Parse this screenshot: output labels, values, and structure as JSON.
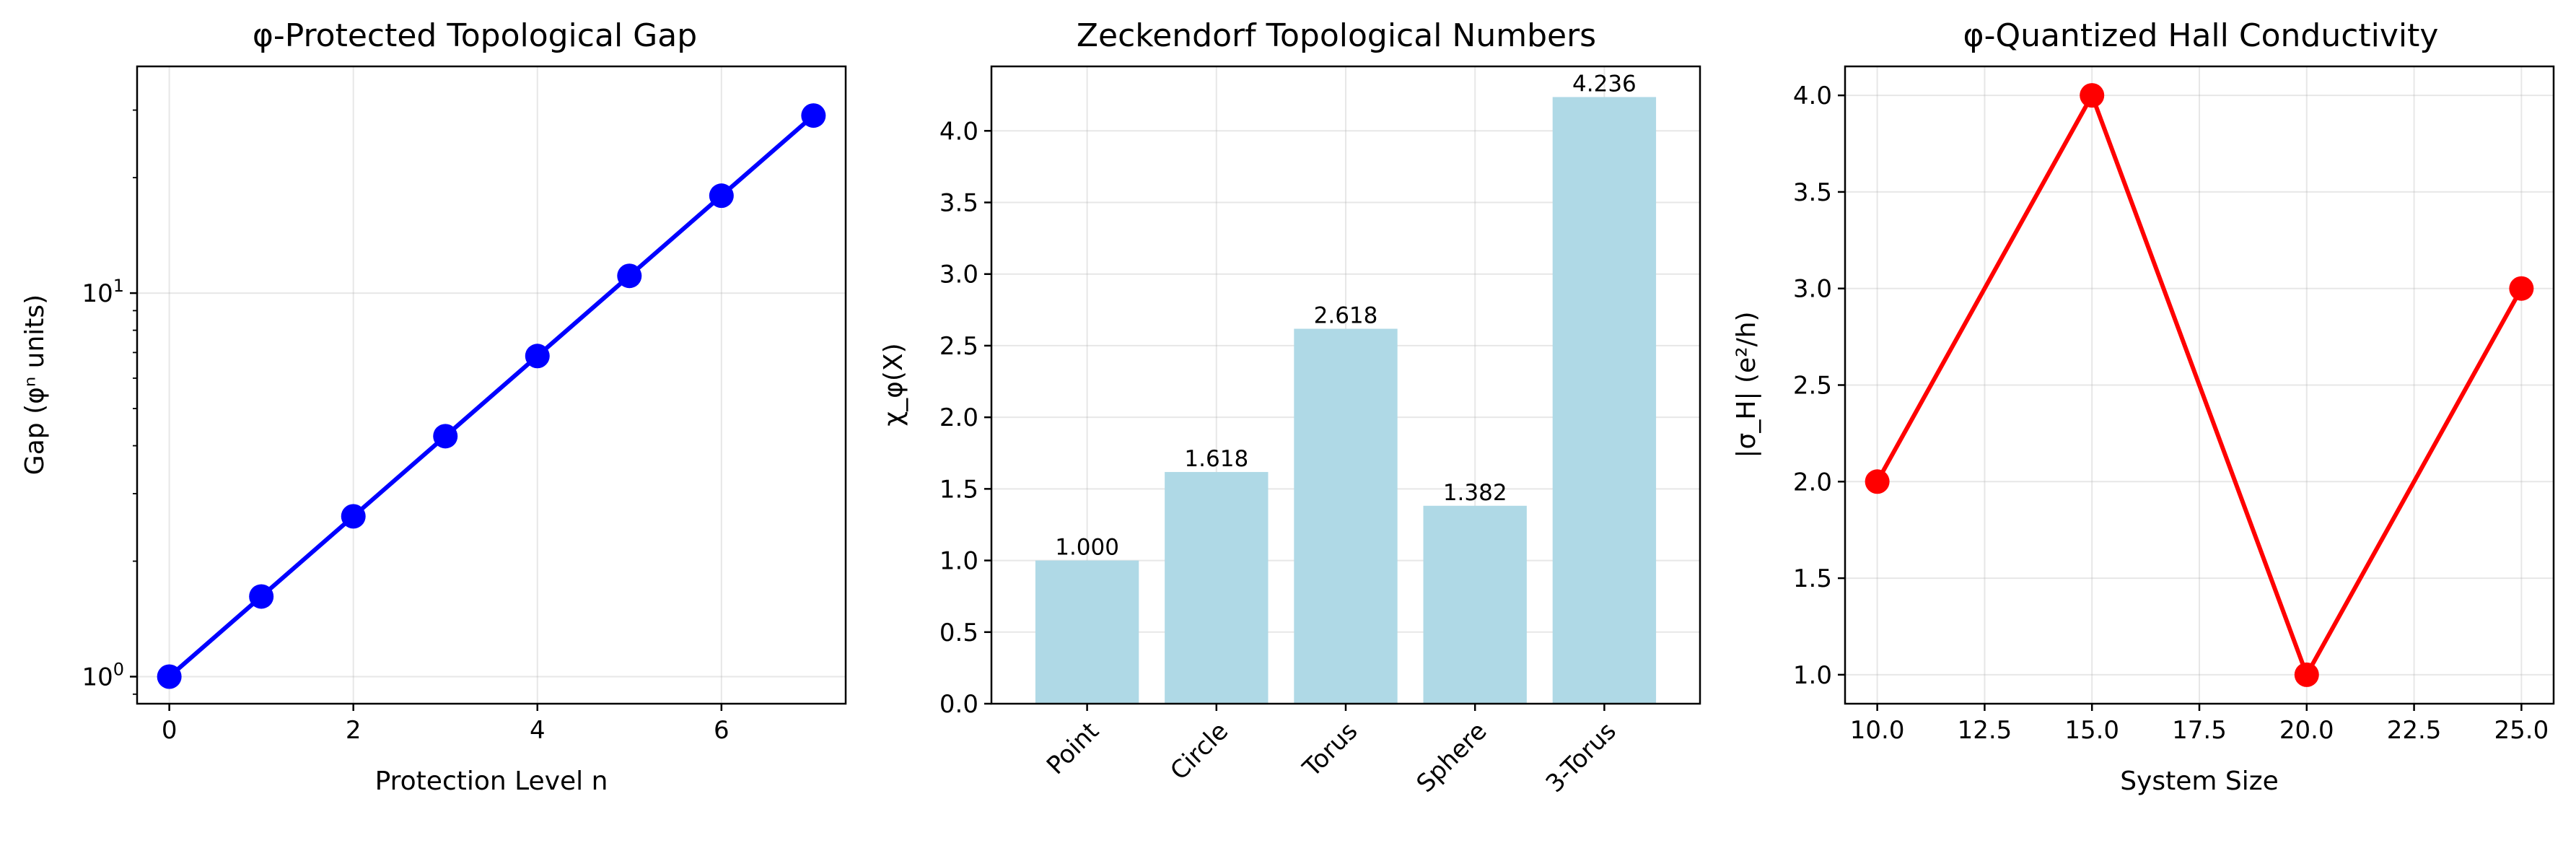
{
  "chart_data": [
    {
      "type": "line",
      "title": "φ-Protected Topological Gap",
      "xlabel": "Protection Level n",
      "ylabel": "Gap (φⁿ units)",
      "yscale": "log",
      "xlim": [
        -0.35,
        7.35
      ],
      "ylim": [
        0.85,
        39
      ],
      "x": [
        0,
        1,
        2,
        3,
        4,
        5,
        6,
        7
      ],
      "y": [
        1.0,
        1.618,
        2.618,
        4.236,
        6.854,
        11.09,
        17.944,
        29.034
      ],
      "xticks": [
        "0",
        "2",
        "4",
        "6"
      ],
      "yticks": [
        "10^0",
        "10^1"
      ],
      "color": "#0000ff",
      "grid": true
    },
    {
      "type": "bar",
      "title": "Zeckendorf Topological Numbers",
      "xlabel": "",
      "ylabel": "χ_φ(X)",
      "ylim": [
        0,
        4.45
      ],
      "categories": [
        "Point",
        "Circle",
        "Torus",
        "Sphere",
        "3-Torus"
      ],
      "values": [
        1.0,
        1.618,
        2.618,
        1.382,
        4.236
      ],
      "data_labels": [
        "1.000",
        "1.618",
        "2.618",
        "1.382",
        "4.236"
      ],
      "yticks": [
        "0.0",
        "0.5",
        "1.0",
        "1.5",
        "2.0",
        "2.5",
        "3.0",
        "3.5",
        "4.0"
      ],
      "color": "#add8e6",
      "grid": true
    },
    {
      "type": "line",
      "title": "φ-Quantized Hall Conductivity",
      "xlabel": "System Size",
      "ylabel": "|σ_H| (e²/h)",
      "xlim": [
        9.25,
        25.75
      ],
      "ylim": [
        0.85,
        4.15
      ],
      "x": [
        10,
        15,
        20,
        25
      ],
      "y": [
        2.0,
        4.0,
        1.0,
        3.0
      ],
      "xticks": [
        "10.0",
        "12.5",
        "15.0",
        "17.5",
        "20.0",
        "22.5",
        "25.0"
      ],
      "yticks": [
        "1.0",
        "1.5",
        "2.0",
        "2.5",
        "3.0",
        "3.5",
        "4.0"
      ],
      "color": "#ff0000",
      "grid": true
    }
  ]
}
